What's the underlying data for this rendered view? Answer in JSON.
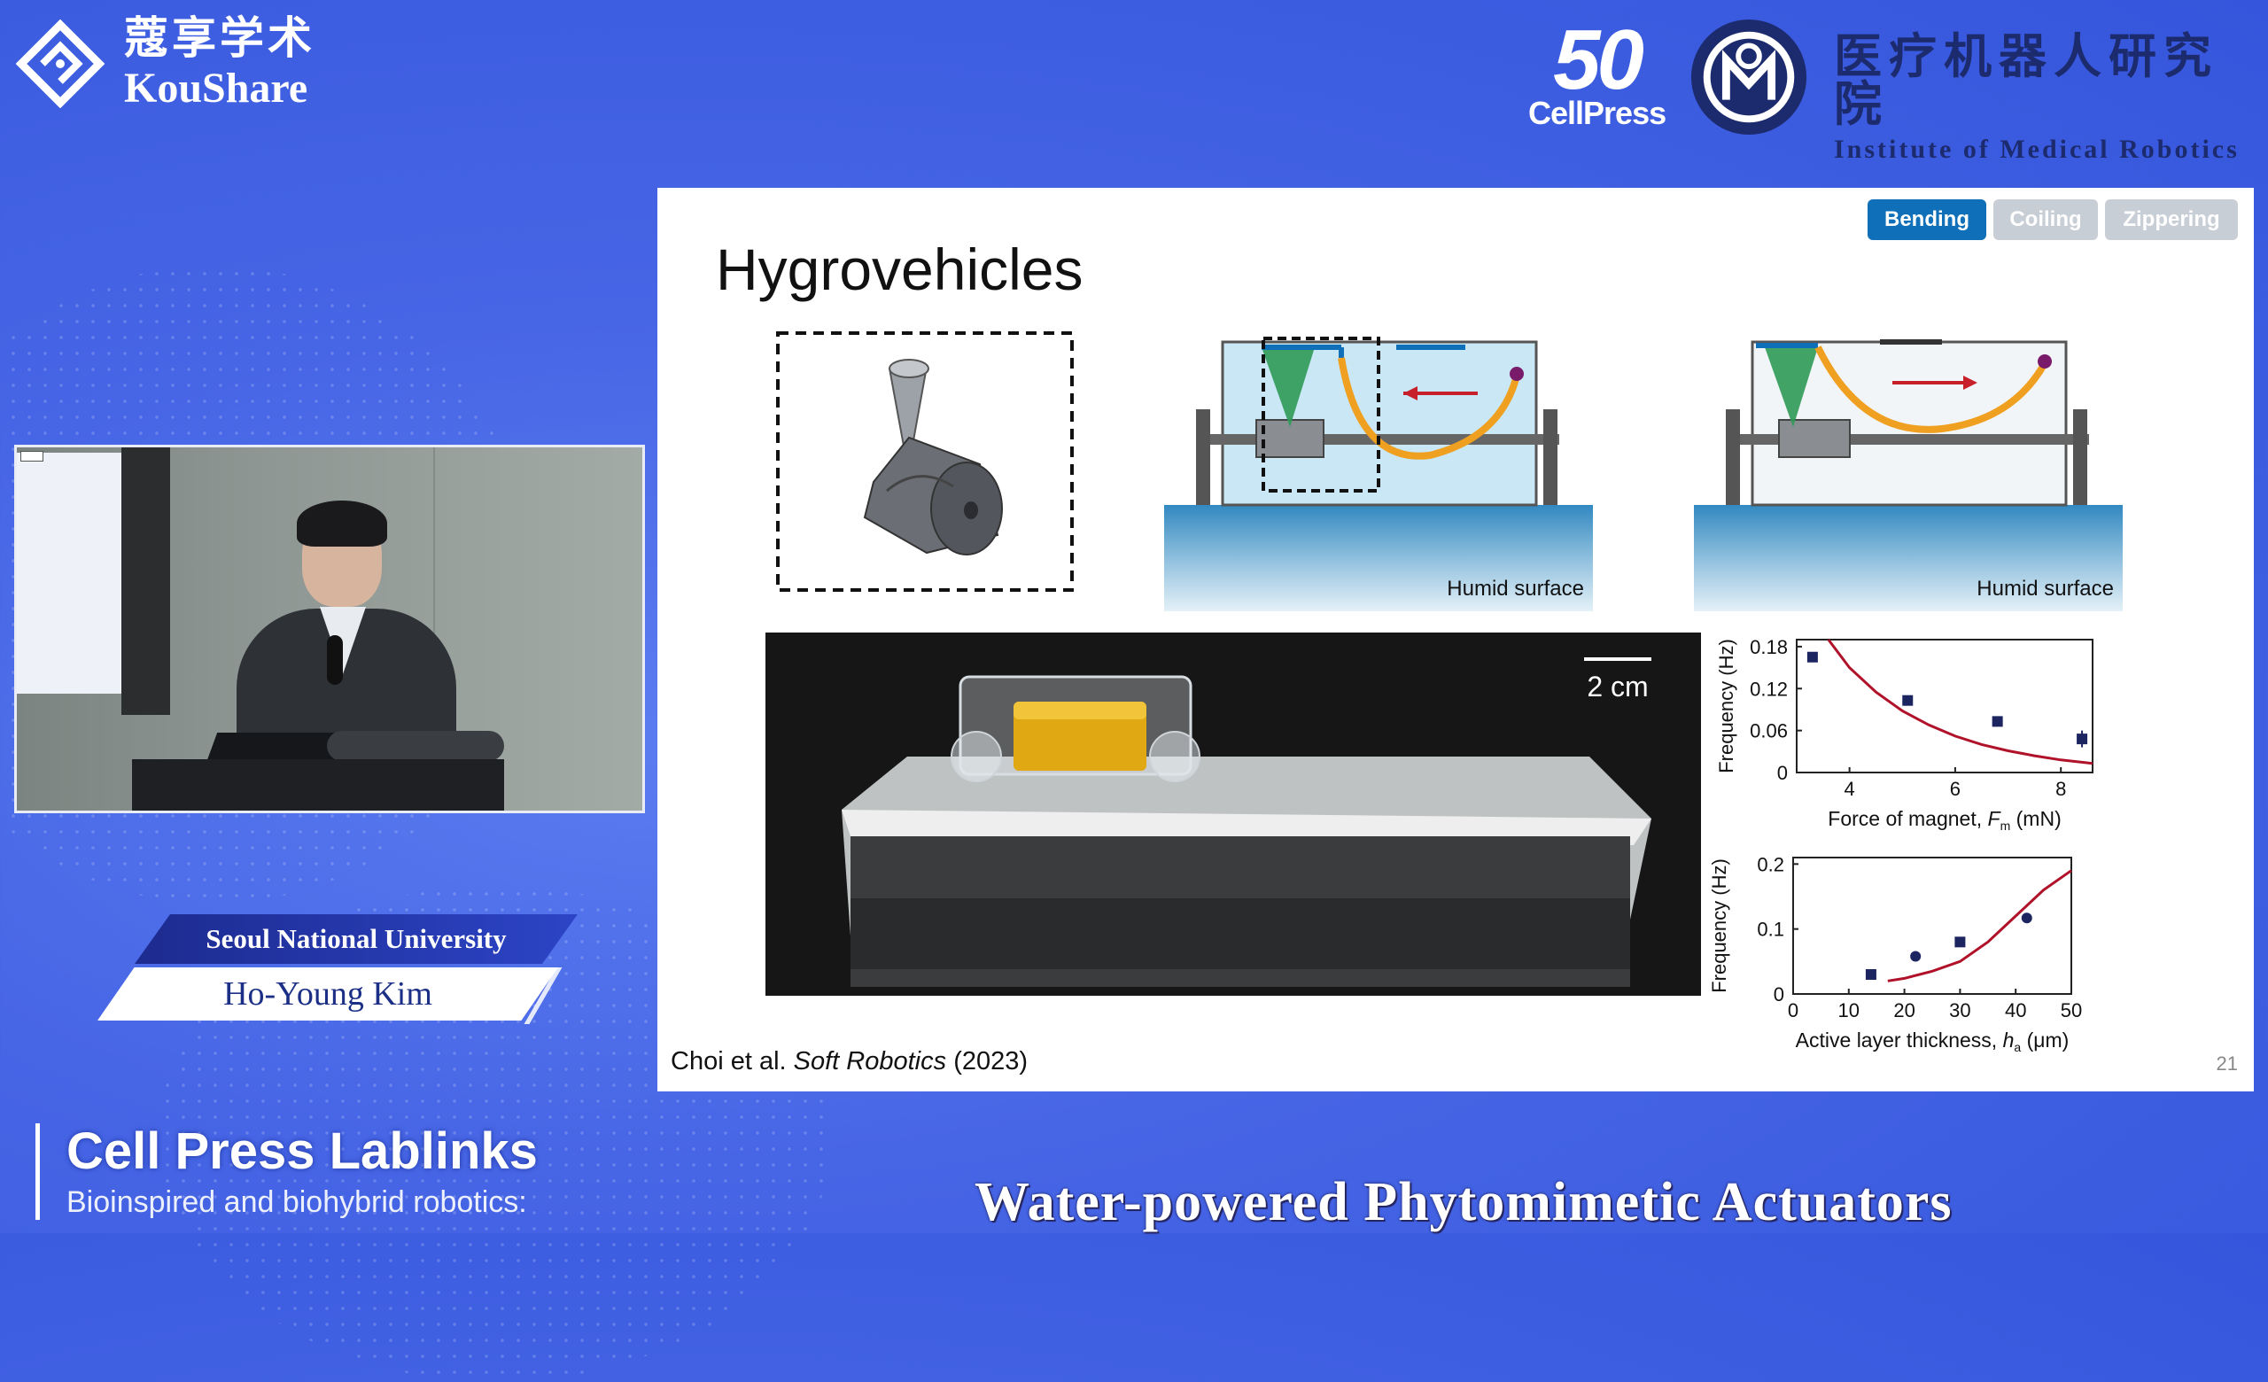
{
  "brand": {
    "cn_name": "蔻享学术",
    "en_name": "KouShare"
  },
  "partners": {
    "cellpress_num": "50",
    "cellpress_label": "CellPress",
    "imr_cn": "医疗机器人研究院",
    "imr_en": "Institute of Medical Robotics"
  },
  "speaker": {
    "affiliation": "Seoul National University",
    "name": "Ho-Young Kim"
  },
  "event": {
    "series": "Cell Press Lablinks",
    "subtitle": "Bioinspired and biohybrid robotics:"
  },
  "session_title": "Water-powered Phytomimetic Actuators",
  "slide": {
    "title": "Hygrovehicles",
    "tabs": [
      {
        "label": "Bending",
        "active": true,
        "color": "#0f6fb8"
      },
      {
        "label": "Coiling",
        "active": false,
        "color": "#c8ced6"
      },
      {
        "label": "Zippering",
        "active": false,
        "color": "#c8ced6"
      }
    ],
    "diagram_left_label": "Humid surface",
    "diagram_right_label": "Humid surface",
    "scale_bar_label": "2 cm",
    "citation_authors": "Choi et al.",
    "citation_journal": "Soft Robotics",
    "citation_year": "(2023)",
    "page_number": "21",
    "colors": {
      "model_curve": "#b0122a",
      "data_marker": "#1c2560",
      "strip": "#f0a020",
      "cone": "#2f9a56"
    }
  },
  "chart_data": [
    {
      "type": "scatter",
      "title": "",
      "ylabel": "Frequency (Hz)",
      "xlabel_prefix": "Force of magnet, ",
      "xlabel_symbol": "F",
      "xlabel_sub": "m",
      "xlabel_suffix": " (mN)",
      "xlim": [
        3,
        8.6
      ],
      "ylim": [
        0,
        0.19
      ],
      "xticks": [
        "4",
        "6",
        "8"
      ],
      "xtick_values": [
        4,
        6,
        8
      ],
      "yticks": [
        "0",
        "0.06",
        "0.12",
        "0.18"
      ],
      "ytick_values": [
        0,
        0.06,
        0.12,
        0.18
      ],
      "series": [
        {
          "marker": "square",
          "x": [
            3.3,
            5.1,
            6.8,
            8.4
          ],
          "y": [
            0.165,
            0.103,
            0.073,
            0.048
          ],
          "err": [
            0,
            0,
            0,
            0.012
          ]
        }
      ],
      "model_curve": {
        "x": [
          3.6,
          4.0,
          4.5,
          5.0,
          5.5,
          6.0,
          6.5,
          7.0,
          7.5,
          8.0,
          8.6
        ],
        "y": [
          0.19,
          0.15,
          0.115,
          0.088,
          0.068,
          0.052,
          0.04,
          0.031,
          0.024,
          0.018,
          0.013
        ]
      }
    },
    {
      "type": "scatter",
      "title": "",
      "ylabel": "Frequency (Hz)",
      "xlabel_prefix": "Active layer thickness, ",
      "xlabel_symbol": "h",
      "xlabel_sub": "a",
      "xlabel_suffix": " (μm)",
      "xlim": [
        0,
        50
      ],
      "ylim": [
        0,
        0.21
      ],
      "xticks": [
        "0",
        "10",
        "20",
        "30",
        "40",
        "50"
      ],
      "xtick_values": [
        0,
        10,
        20,
        30,
        40,
        50
      ],
      "yticks": [
        "0",
        "0.1",
        "0.2"
      ],
      "ytick_values": [
        0,
        0.1,
        0.2
      ],
      "series": [
        {
          "marker": "square",
          "x": [
            14,
            30
          ],
          "y": [
            0.03,
            0.08
          ]
        },
        {
          "marker": "circle",
          "x": [
            22,
            42
          ],
          "y": [
            0.058,
            0.117
          ]
        }
      ],
      "model_curve": {
        "x": [
          17,
          20,
          25,
          30,
          35,
          40,
          45,
          50
        ],
        "y": [
          0.02,
          0.024,
          0.035,
          0.05,
          0.08,
          0.12,
          0.16,
          0.19
        ]
      }
    }
  ]
}
